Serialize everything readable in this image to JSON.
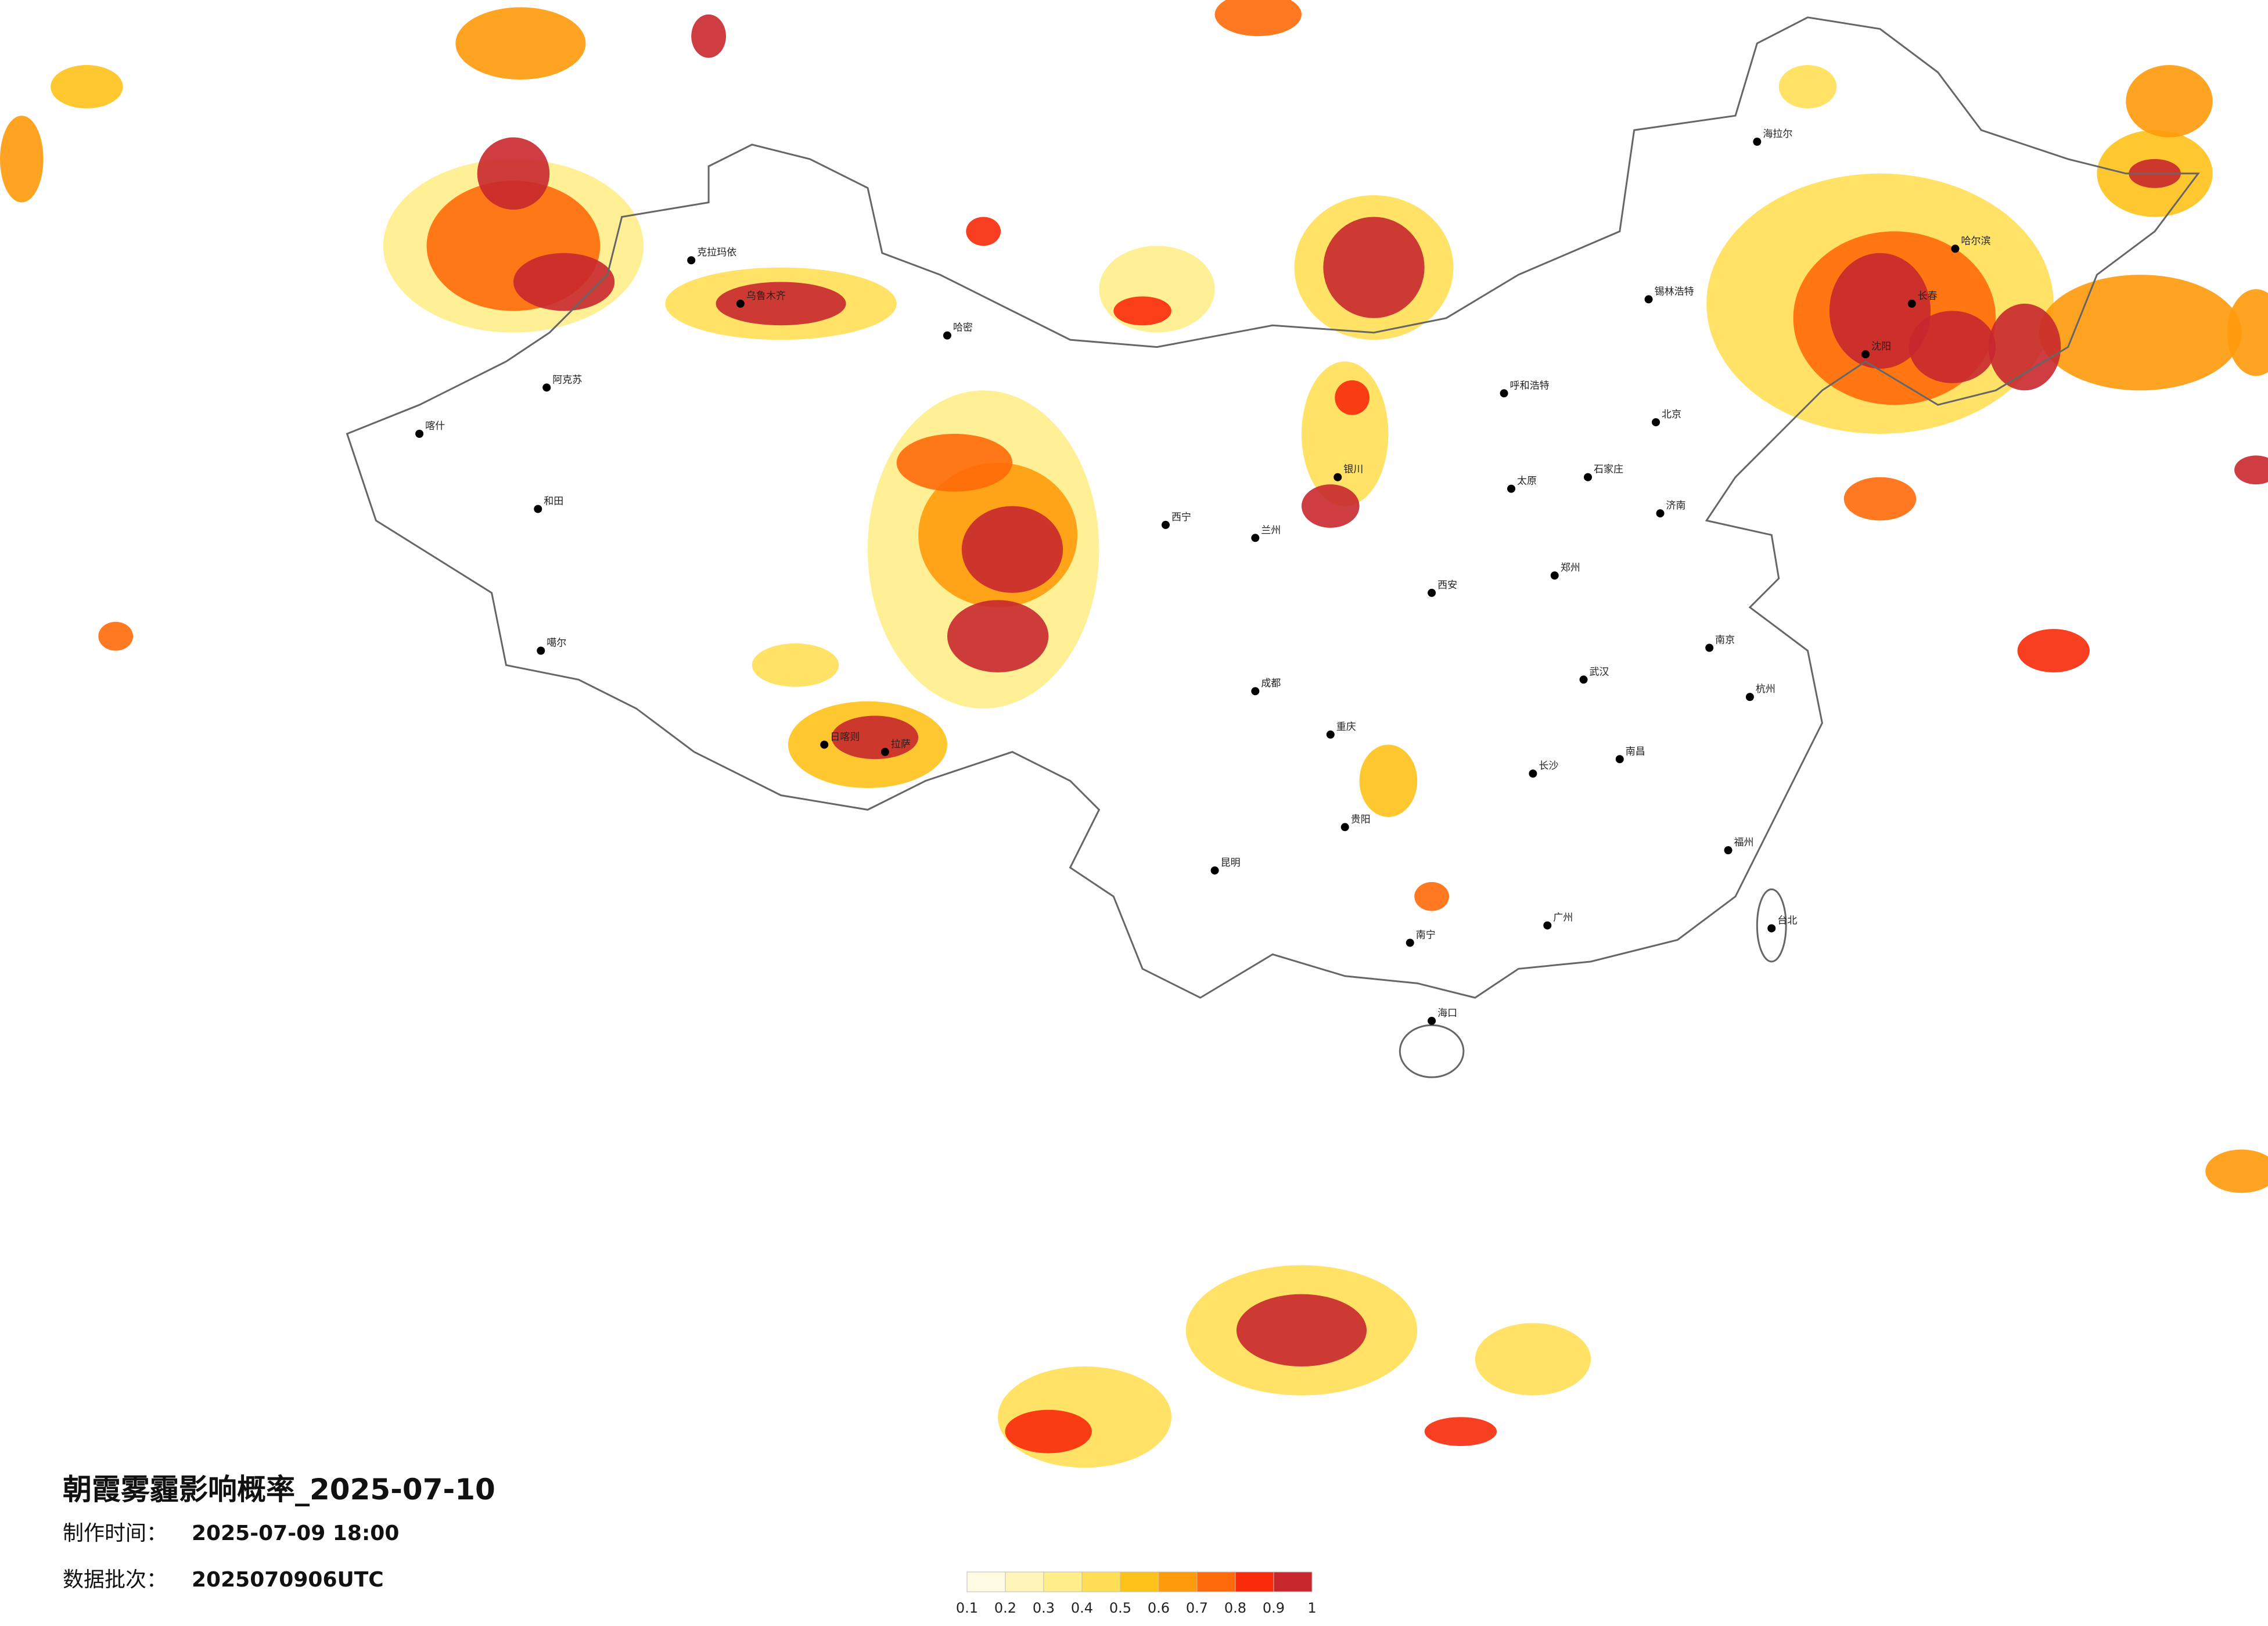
{
  "header": {
    "title": "朝霞雾霾影响概率_2025-07-10",
    "made_label": "制作时间：",
    "made_value": "2025-07-09 18:00",
    "batch_label": "数据批次：",
    "batch_value": "2025070906UTC"
  },
  "legend": {
    "colors": [
      "#fffbe3",
      "#fff5b8",
      "#ffee8a",
      "#ffdf55",
      "#ffc21a",
      "#ff9a0a",
      "#ff6a0a",
      "#f82a0a",
      "#c8282d"
    ],
    "ticks": [
      "0.1",
      "0.2",
      "0.3",
      "0.4",
      "0.5",
      "0.6",
      "0.7",
      "0.8",
      "0.9",
      "1"
    ]
  },
  "cities": [
    "克拉玛依",
    "乌鲁木齐",
    "哈密",
    "阿克苏",
    "和田",
    "喀什",
    "噶尔",
    "拉萨",
    "日喀则",
    "西宁",
    "兰州",
    "银川",
    "呼和浩特",
    "太原",
    "北京",
    "石家庄",
    "济南",
    "郑州",
    "西安",
    "成都",
    "重庆",
    "武汉",
    "长沙",
    "南昌",
    "南京",
    "杭州",
    "福州",
    "贵阳",
    "昆明",
    "南宁",
    "广州",
    "海口",
    "台北",
    "沈阳",
    "长春",
    "哈尔滨",
    "海拉尔",
    "锡林浩特"
  ]
}
